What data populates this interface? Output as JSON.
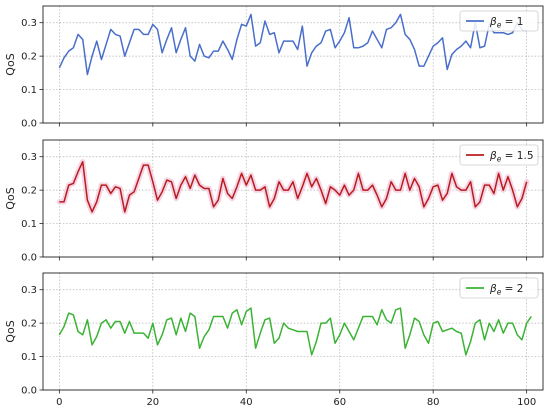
{
  "chart_data": [
    {
      "type": "line",
      "ylabel": "QoS",
      "ylim": [
        0,
        0.35
      ],
      "yticks": [
        "0.0",
        "0.1",
        "0.2",
        "0.3"
      ],
      "xlim": [
        -3.5,
        103.5
      ],
      "xticks": [
        "0",
        "20",
        "40",
        "60",
        "80",
        "100"
      ],
      "xticklabels_visible": false,
      "grid": true,
      "legend_position": "top-right",
      "series": [
        {
          "name": "βe = 1",
          "legend_main": "β",
          "legend_sub": "e",
          "legend_rest": " = 1",
          "color": "#4a6ecb",
          "values": [
            0.165,
            0.195,
            0.215,
            0.225,
            0.265,
            0.25,
            0.145,
            0.2,
            0.245,
            0.19,
            0.235,
            0.28,
            0.265,
            0.26,
            0.2,
            0.24,
            0.28,
            0.28,
            0.265,
            0.265,
            0.295,
            0.28,
            0.21,
            0.25,
            0.285,
            0.21,
            0.25,
            0.285,
            0.2,
            0.185,
            0.235,
            0.2,
            0.195,
            0.215,
            0.215,
            0.245,
            0.22,
            0.19,
            0.25,
            0.295,
            0.29,
            0.325,
            0.23,
            0.24,
            0.305,
            0.265,
            0.27,
            0.21,
            0.245,
            0.245,
            0.245,
            0.22,
            0.29,
            0.17,
            0.21,
            0.23,
            0.24,
            0.275,
            0.28,
            0.225,
            0.245,
            0.27,
            0.315,
            0.225,
            0.225,
            0.23,
            0.24,
            0.275,
            0.25,
            0.225,
            0.28,
            0.285,
            0.3,
            0.325,
            0.265,
            0.25,
            0.22,
            0.17,
            0.17,
            0.2,
            0.23,
            0.24,
            0.255,
            0.16,
            0.205,
            0.22,
            0.23,
            0.245,
            0.225,
            0.3,
            0.225,
            0.23,
            0.295,
            0.27,
            0.27,
            0.27,
            0.265,
            0.27,
            0.3,
            0.28,
            0.275
          ]
        }
      ]
    },
    {
      "type": "line",
      "ylabel": "QoS",
      "ylim": [
        0,
        0.35
      ],
      "yticks": [
        "0.0",
        "0.1",
        "0.2",
        "0.3"
      ],
      "xlim": [
        -3.5,
        103.5
      ],
      "xticks": [
        "0",
        "20",
        "40",
        "60",
        "80",
        "100"
      ],
      "xticklabels_visible": false,
      "grid": true,
      "legend_position": "top-right",
      "series": [
        {
          "name": "βe = 1.5",
          "legend_main": "β",
          "legend_sub": "e",
          "legend_rest": " = 1.5",
          "color": "#b81d1d",
          "band_color": "#f4c6dc",
          "values": [
            0.165,
            0.165,
            0.215,
            0.22,
            0.255,
            0.285,
            0.17,
            0.135,
            0.165,
            0.215,
            0.215,
            0.19,
            0.21,
            0.205,
            0.135,
            0.185,
            0.195,
            0.235,
            0.275,
            0.275,
            0.225,
            0.17,
            0.195,
            0.23,
            0.225,
            0.175,
            0.215,
            0.24,
            0.205,
            0.245,
            0.215,
            0.205,
            0.205,
            0.15,
            0.17,
            0.235,
            0.19,
            0.175,
            0.21,
            0.25,
            0.215,
            0.245,
            0.2,
            0.2,
            0.21,
            0.15,
            0.175,
            0.225,
            0.2,
            0.2,
            0.225,
            0.175,
            0.21,
            0.25,
            0.21,
            0.235,
            0.2,
            0.16,
            0.21,
            0.2,
            0.185,
            0.215,
            0.185,
            0.2,
            0.25,
            0.2,
            0.2,
            0.215,
            0.185,
            0.15,
            0.175,
            0.225,
            0.2,
            0.2,
            0.25,
            0.2,
            0.235,
            0.21,
            0.15,
            0.175,
            0.21,
            0.215,
            0.17,
            0.19,
            0.25,
            0.21,
            0.2,
            0.2,
            0.225,
            0.15,
            0.165,
            0.215,
            0.215,
            0.19,
            0.25,
            0.2,
            0.24,
            0.2,
            0.15,
            0.175,
            0.225
          ]
        }
      ]
    },
    {
      "type": "line",
      "ylabel": "QoS",
      "ylim": [
        0,
        0.35
      ],
      "yticks": [
        "0.0",
        "0.1",
        "0.2",
        "0.3"
      ],
      "xlim": [
        -3.5,
        103.5
      ],
      "xticks": [
        "0",
        "20",
        "40",
        "60",
        "80",
        "100"
      ],
      "xticklabels_visible": true,
      "grid": true,
      "legend_position": "top-right",
      "series": [
        {
          "name": "βe = 2",
          "legend_main": "β",
          "legend_sub": "e",
          "legend_rest": " = 2",
          "color": "#3ab334",
          "values": [
            0.165,
            0.19,
            0.23,
            0.225,
            0.175,
            0.165,
            0.21,
            0.135,
            0.16,
            0.2,
            0.21,
            0.185,
            0.205,
            0.205,
            0.17,
            0.205,
            0.17,
            0.17,
            0.17,
            0.155,
            0.2,
            0.135,
            0.165,
            0.21,
            0.215,
            0.165,
            0.215,
            0.175,
            0.23,
            0.22,
            0.125,
            0.16,
            0.18,
            0.22,
            0.22,
            0.22,
            0.185,
            0.23,
            0.24,
            0.195,
            0.235,
            0.245,
            0.125,
            0.17,
            0.21,
            0.215,
            0.14,
            0.155,
            0.2,
            0.185,
            0.18,
            0.175,
            0.175,
            0.175,
            0.105,
            0.145,
            0.2,
            0.2,
            0.215,
            0.14,
            0.165,
            0.2,
            0.175,
            0.15,
            0.185,
            0.22,
            0.22,
            0.22,
            0.195,
            0.24,
            0.21,
            0.2,
            0.24,
            0.245,
            0.125,
            0.165,
            0.215,
            0.205,
            0.165,
            0.14,
            0.2,
            0.205,
            0.175,
            0.18,
            0.185,
            0.175,
            0.17,
            0.105,
            0.145,
            0.2,
            0.21,
            0.15,
            0.2,
            0.175,
            0.21,
            0.17,
            0.2,
            0.2,
            0.165,
            0.15,
            0.2,
            0.22
          ]
        }
      ]
    }
  ]
}
